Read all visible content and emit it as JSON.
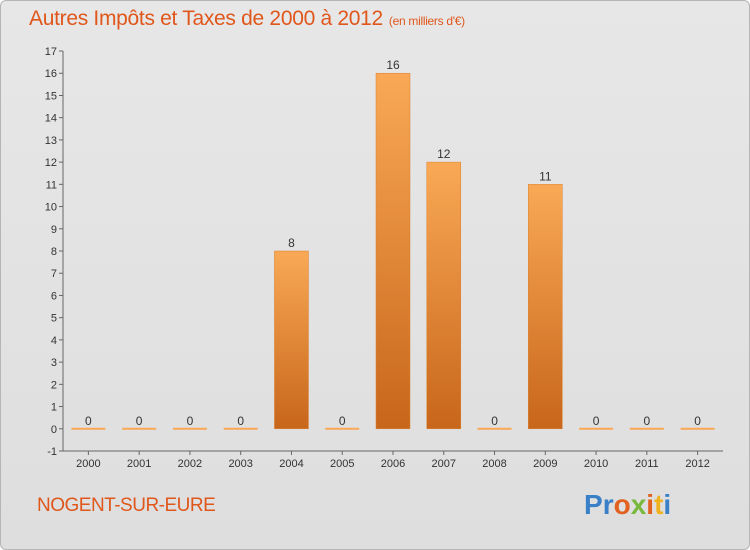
{
  "header": {
    "title": "Autres Impôts et Taxes de 2000 à 2012",
    "unit": "(en milliers d'€)"
  },
  "footer": {
    "city": "NOGENT-SUR-EURE",
    "logo_letters": [
      "P",
      "r",
      "o",
      "x",
      "i",
      "t",
      "i"
    ]
  },
  "colors": {
    "title": "#e0571c",
    "bar_light": "#f9a955",
    "bar_dark": "#c8661b",
    "logo": [
      "#3a80c8",
      "#3a80c8",
      "#e2611f",
      "#79b83c",
      "#e2611f",
      "#f0b21e",
      "#3a80c8"
    ]
  },
  "chart_data": {
    "type": "bar",
    "categories": [
      "2000",
      "2001",
      "2002",
      "2003",
      "2004",
      "2005",
      "2006",
      "2007",
      "2008",
      "2009",
      "2010",
      "2011",
      "2012"
    ],
    "values": [
      0,
      0,
      0,
      0,
      8,
      0,
      16,
      12,
      0,
      11,
      0,
      0,
      0
    ],
    "data_labels": [
      "0",
      "0",
      "0",
      "0",
      "8",
      "0",
      "16",
      "12",
      "0",
      "11",
      "0",
      "0",
      "0"
    ],
    "ylim": [
      -1,
      17
    ],
    "yticks": [
      -1,
      0,
      1,
      2,
      3,
      4,
      5,
      6,
      7,
      8,
      9,
      10,
      11,
      12,
      13,
      14,
      15,
      16,
      17
    ],
    "ytick_labels": [
      "-1",
      "0",
      "1",
      "2",
      "3",
      "4",
      "5",
      "6",
      "7",
      "8",
      "9",
      "10",
      "11",
      "12",
      "13",
      "14",
      "15",
      "16",
      "17"
    ],
    "grid": false,
    "legend": "none"
  }
}
